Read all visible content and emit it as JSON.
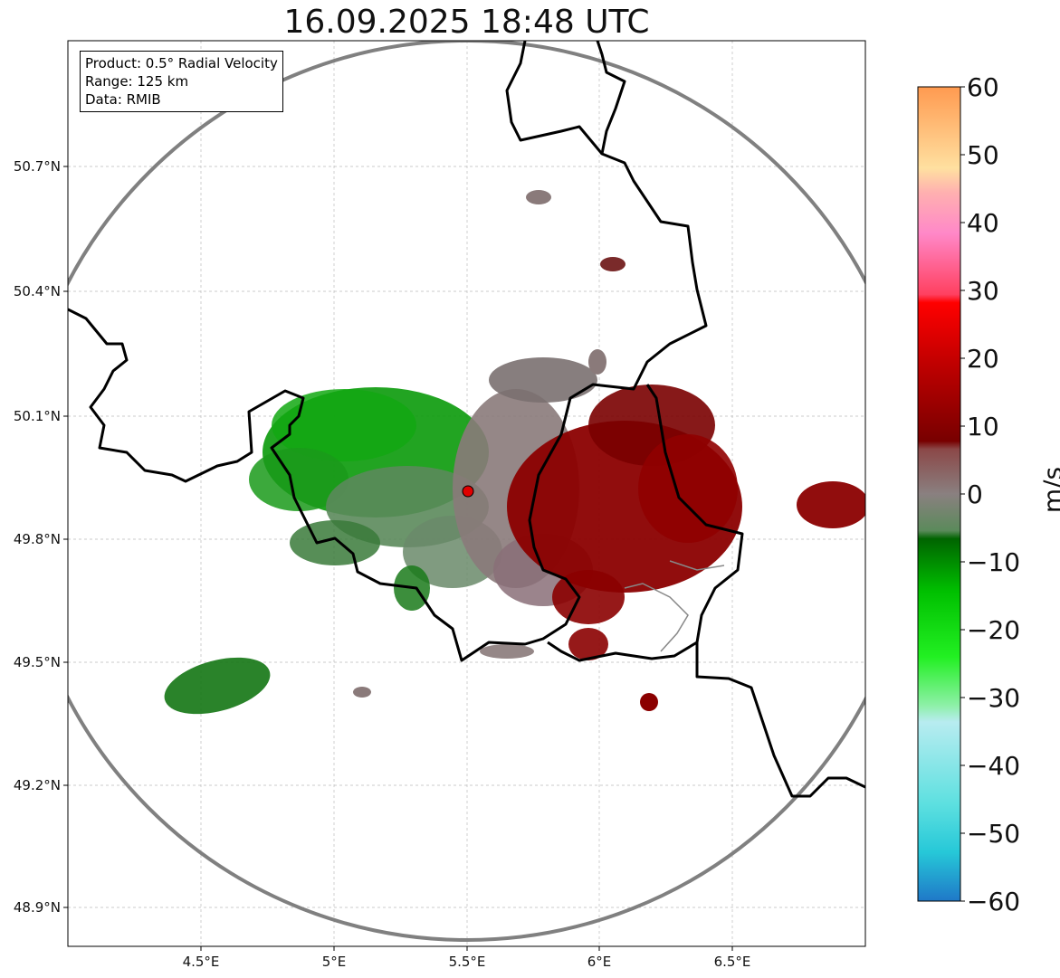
{
  "title": "16.09.2025 18:48 UTC",
  "info": {
    "product": "Product: 0.5° Radial Velocity",
    "range": "Range: 125 km",
    "source": "Data: RMIB"
  },
  "axes": {
    "x_ticks": [
      "4.5°E",
      "5°E",
      "5.5°E",
      "6°E",
      "6.5°E"
    ],
    "y_ticks": [
      "50.7°N",
      "50.4°N",
      "50.1°N",
      "49.8°N",
      "49.5°N",
      "49.2°N",
      "48.9°N"
    ],
    "lon_range": [
      4.0,
      7.0
    ],
    "lat_range": [
      48.8,
      51.0
    ]
  },
  "colorbar": {
    "label": "m/s",
    "ticks": [
      "60",
      "50",
      "40",
      "30",
      "20",
      "10",
      "0",
      "−10",
      "−20",
      "−30",
      "−40",
      "−50",
      "−60"
    ],
    "range": [
      -60,
      60
    ]
  },
  "radar": {
    "lon": 5.505,
    "lat": 49.914,
    "range_km": 125
  },
  "colors": {
    "approaching_strong": "#00cc00",
    "approaching": "#1a8f1a",
    "near_zero_green": "#5b8a5b",
    "near_zero": "#8a7a7a",
    "receding": "#8b0000",
    "border": "#000000",
    "range_ring": "#808080"
  }
}
